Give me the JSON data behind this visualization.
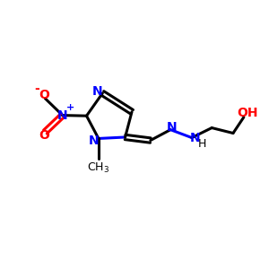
{
  "bg_color": "#ffffff",
  "bond_color": "#000000",
  "n_color": "#0000ff",
  "o_color": "#ff0000",
  "line_width": 2.2,
  "fig_width": 3.0,
  "fig_height": 3.0,
  "dpi": 100,
  "xlim": [
    0,
    10
  ],
  "ylim": [
    0,
    10
  ]
}
